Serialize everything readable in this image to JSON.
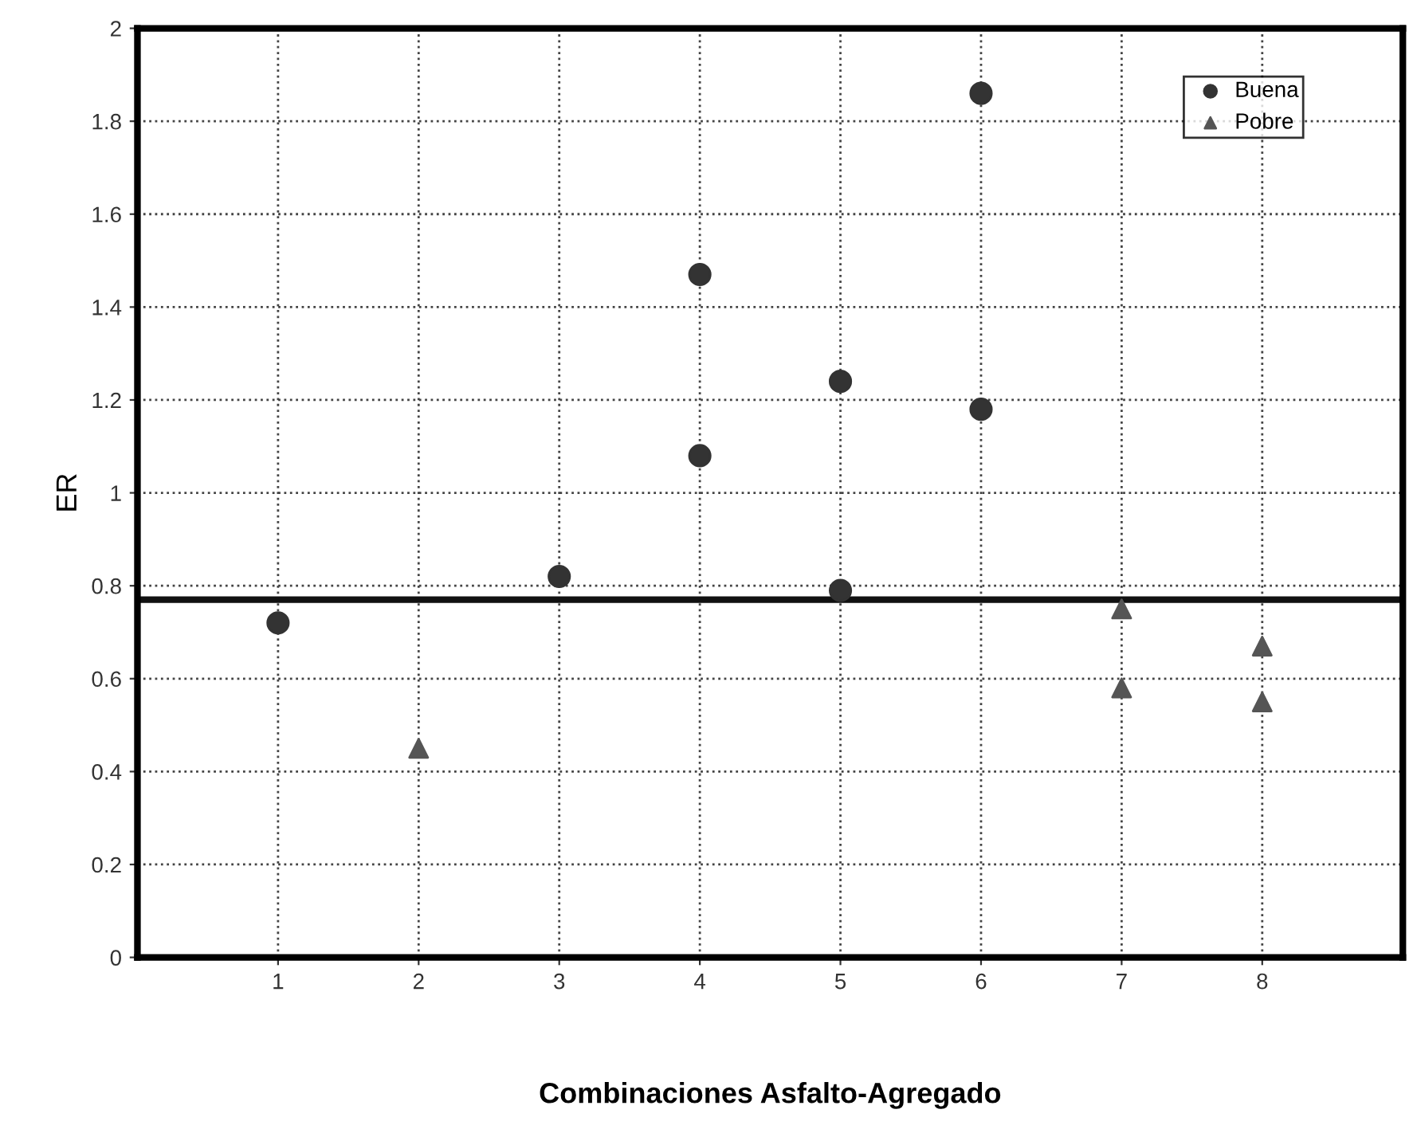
{
  "chart_data": {
    "type": "scatter",
    "xlabel": "Combinaciones Asfalto-Agregado",
    "ylabel": "ER",
    "series": [
      {
        "name": "Buena",
        "color": "#333333",
        "marker": "circle",
        "x": [
          1,
          3,
          4,
          4,
          5,
          5,
          6,
          6
        ],
        "values": [
          0.72,
          0.82,
          1.47,
          1.08,
          1.24,
          0.79,
          1.86,
          1.18
        ]
      },
      {
        "name": "Pobre",
        "color": "#555555",
        "marker": "triangle",
        "x": [
          2,
          7,
          7,
          8,
          8
        ],
        "values": [
          0.45,
          0.75,
          0.58,
          0.67,
          0.55
        ]
      }
    ],
    "xlim": [
      0,
      9
    ],
    "xticks": [
      1,
      2,
      3,
      4,
      5,
      6,
      7,
      8
    ],
    "ylim": [
      0,
      2
    ],
    "yticks": [
      0,
      0.2,
      0.4,
      0.6,
      0.8,
      1,
      1.2,
      1.4,
      1.6,
      1.8,
      2
    ],
    "ref_lines": [
      {
        "axis": "y",
        "value": 0.77,
        "color": "#111111",
        "line_style": "solid"
      }
    ],
    "grid": true,
    "legend": "top right"
  }
}
